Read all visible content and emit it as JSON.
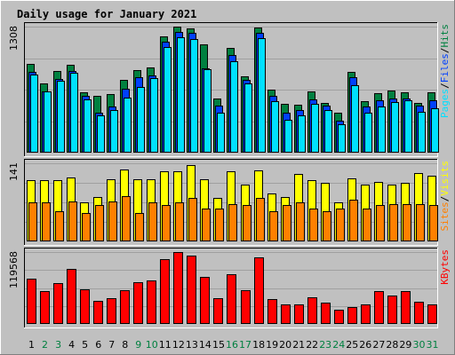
{
  "chart_data": {
    "type": "bar",
    "title": "Daily usage for January 2021",
    "colors": {
      "title": "#0000b0",
      "hits": "#008040",
      "files": "#0040ff",
      "pages": "#00e0ff",
      "visits": "#ffff00",
      "sites": "#ff8000",
      "kbytes": "#ff0000",
      "weekend_day": "#008040",
      "weekday_day": "#000000",
      "panel_bg": "#c0c0c0"
    },
    "days": [
      "1",
      "2",
      "3",
      "4",
      "5",
      "6",
      "7",
      "8",
      "9",
      "10",
      "11",
      "12",
      "13",
      "14",
      "15",
      "16",
      "17",
      "18",
      "19",
      "20",
      "21",
      "22",
      "23",
      "24",
      "25",
      "26",
      "27",
      "28",
      "29",
      "30",
      "31"
    ],
    "weekend_days": [
      "2",
      "3",
      "9",
      "10",
      "16",
      "17",
      "23",
      "24",
      "30",
      "31"
    ],
    "panels": [
      {
        "name": "hits-files-pages",
        "max_label": "1308",
        "ymax": 1308,
        "legend": [
          "Pages",
          "/",
          "Files",
          "/",
          "Hits"
        ],
        "legend_colors": [
          "#00e0ff",
          "#000000",
          "#0040ff",
          "#000000",
          "#008040"
        ],
        "series": [
          {
            "name": "Hits",
            "values": [
              925,
              720,
              845,
              915,
              625,
              585,
              610,
              755,
              860,
              885,
              1205,
              1308,
              1285,
              1125,
              565,
              1090,
              795,
              1300,
              655,
              505,
              500,
              635,
              520,
              410,
              840,
              535,
              615,
              645,
              625,
              515,
              625
            ]
          },
          {
            "name": "Files",
            "values": [
              835,
              640,
              765,
              845,
              585,
              415,
              480,
              665,
              780,
              800,
              1150,
              1255,
              1240,
              875,
              490,
              1010,
              755,
              1245,
              585,
              410,
              440,
              555,
              490,
              335,
              780,
              480,
              545,
              565,
              560,
              490,
              545
            ]
          },
          {
            "name": "Pages",
            "values": [
              815,
              635,
              745,
              825,
              550,
              385,
              445,
              575,
              680,
              770,
              1100,
              1195,
              1175,
              870,
              415,
              950,
              715,
              1190,
              530,
              345,
              385,
              510,
              440,
              295,
              700,
              410,
              480,
              525,
              545,
              420,
              465
            ]
          }
        ]
      },
      {
        "name": "sites-visits",
        "max_label": "141",
        "ymax": 141,
        "legend": [
          "Sites",
          "/",
          "Visits"
        ],
        "legend_colors": [
          "#ff8000",
          "#000000",
          "#ffff00"
        ],
        "series": [
          {
            "name": "Visits",
            "values": [
              110,
              110,
              110,
              115,
              70,
              80,
              112,
              130,
              112,
              112,
              127,
              127,
              137,
              112,
              78,
              127,
              102,
              128,
              87,
              80,
              122,
              110,
              105,
              70,
              113,
              103,
              108,
              103,
              105,
              124,
              118
            ]
          },
          {
            "name": "Sites",
            "values": [
              70,
              70,
              55,
              72,
              52,
              65,
              72,
              82,
              52,
              70,
              65,
              70,
              78,
              60,
              60,
              67,
              65,
              78,
              54,
              65,
              70,
              60,
              55,
              60,
              76,
              60,
              65,
              67,
              68,
              67,
              66
            ]
          }
        ]
      },
      {
        "name": "kbytes",
        "max_label": "119568",
        "ymax": 119568,
        "legend": [
          "KBytes"
        ],
        "legend_colors": [
          "#ff0000"
        ],
        "series": [
          {
            "name": "KBytes",
            "values": [
              75000,
              55000,
              68000,
              91000,
              57000,
              38000,
              43000,
              56000,
              69000,
              73000,
              108000,
              119568,
              114000,
              78000,
              43000,
              83000,
              56000,
              110000,
              41000,
              32000,
              33000,
              44000,
              36000,
              23000,
              28000,
              33000,
              54000,
              47000,
              54000,
              37000,
              33000
            ]
          }
        ]
      }
    ]
  }
}
